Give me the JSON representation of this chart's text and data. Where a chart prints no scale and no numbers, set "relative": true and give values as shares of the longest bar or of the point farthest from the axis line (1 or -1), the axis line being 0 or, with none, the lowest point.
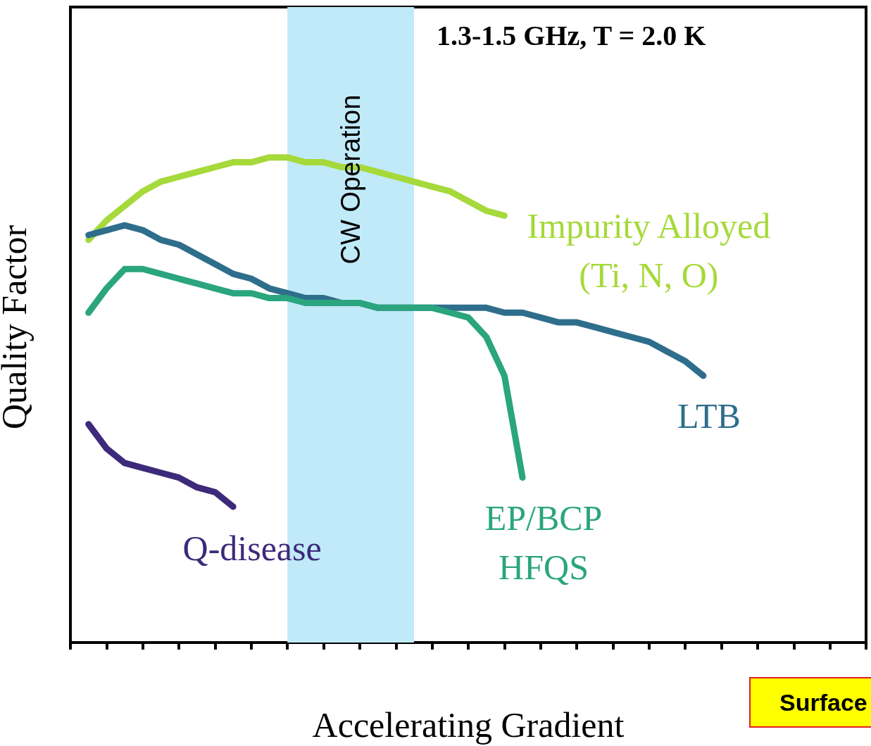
{
  "chart_data": {
    "type": "line",
    "relative": true,
    "title": "1.3-1.5 GHz, T = 2.0 K",
    "xlabel": "Accelerating Gradient",
    "ylabel": "Quality Factor",
    "categories": [
      null,
      null,
      null,
      null,
      null,
      null,
      null,
      null,
      null,
      null,
      null,
      null,
      null,
      null,
      null,
      null,
      null,
      null,
      null,
      null,
      null,
      null,
      null,
      null,
      null,
      null,
      null,
      null,
      null,
      null,
      null,
      null,
      null,
      null,
      null,
      null,
      null,
      null,
      null,
      null,
      null,
      null,
      null,
      null,
      null
    ],
    "marker": "none",
    "line_style": "solid",
    "annotations": [
      "CW Operation",
      "Surface"
    ],
    "series": [
      {
        "name": "Impurity Alloyed\n(Ti, N, O)",
        "color": "#a6d93a",
        "values": [
          null,
          0.83,
          0.87,
          0.9,
          0.93,
          0.95,
          0.96,
          0.97,
          0.98,
          0.99,
          0.99,
          1.0,
          1.0,
          0.99,
          0.99,
          0.98,
          0.98,
          0.97,
          0.96,
          0.95,
          0.94,
          0.93,
          0.91,
          0.89,
          0.88,
          null,
          null,
          null,
          null,
          null,
          null,
          null,
          null,
          null,
          null,
          null,
          null,
          null,
          null,
          null,
          null,
          null,
          null,
          null,
          null
        ]
      },
      {
        "name": "LTB",
        "color": "#2e6e8c",
        "values": [
          null,
          0.84,
          0.85,
          0.86,
          0.85,
          0.83,
          0.82,
          0.8,
          0.78,
          0.76,
          0.75,
          0.73,
          0.72,
          0.71,
          0.71,
          0.7,
          0.7,
          0.69,
          0.69,
          0.69,
          0.69,
          0.69,
          0.69,
          0.69,
          0.68,
          0.68,
          0.67,
          0.66,
          0.66,
          0.65,
          0.64,
          0.63,
          0.62,
          0.6,
          0.58,
          0.55,
          null,
          null,
          null,
          null,
          null,
          null,
          null,
          null,
          null
        ]
      },
      {
        "name": "EP/BCP\nHFQS",
        "color": "#2aa57e",
        "values": [
          null,
          0.68,
          0.73,
          0.77,
          0.77,
          0.76,
          0.75,
          0.74,
          0.73,
          0.72,
          0.72,
          0.71,
          0.71,
          0.7,
          0.7,
          0.7,
          0.7,
          0.69,
          0.69,
          0.69,
          0.69,
          0.68,
          0.67,
          0.63,
          0.55,
          0.34,
          null,
          null,
          null,
          null,
          null,
          null,
          null,
          null,
          null,
          null,
          null,
          null,
          null,
          null,
          null,
          null,
          null,
          null,
          null
        ]
      },
      {
        "name": "Q-disease",
        "color": "#3d2a7a",
        "values": [
          null,
          0.45,
          0.4,
          0.37,
          0.36,
          0.35,
          0.34,
          0.32,
          0.31,
          0.28,
          null,
          null,
          null,
          null,
          null,
          null,
          null,
          null,
          null,
          null,
          null,
          null,
          null,
          null,
          null,
          null,
          null,
          null,
          null,
          null,
          null,
          null,
          null,
          null,
          null,
          null,
          null,
          null,
          null,
          null,
          null,
          null,
          null,
          null,
          null
        ]
      }
    ]
  }
}
